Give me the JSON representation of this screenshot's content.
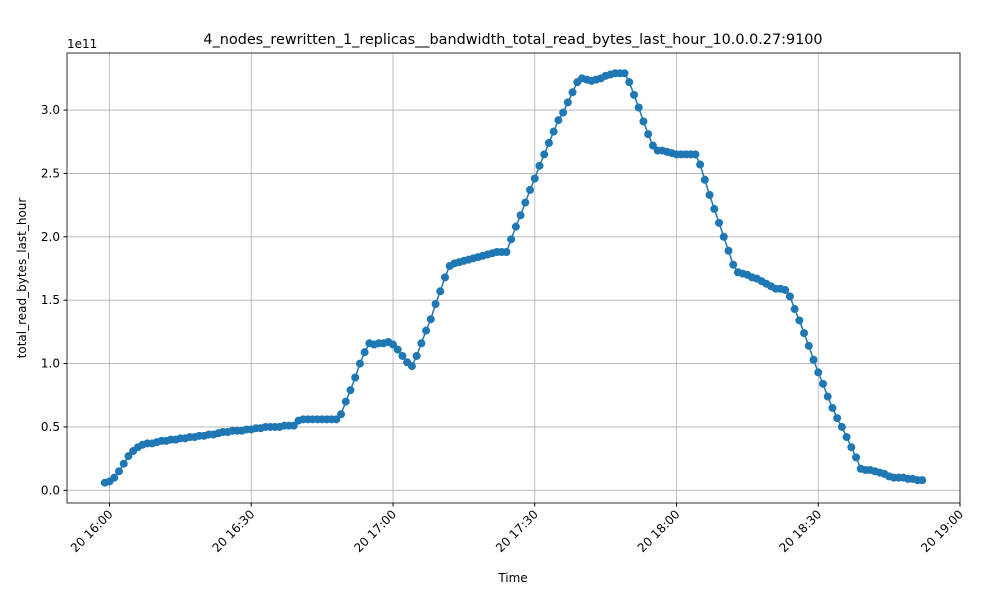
{
  "chart_data": {
    "type": "line",
    "title": "4_nodes_rewritten_1_replicas__bandwidth_total_read_bytes_last_hour_10.0.0.27:9100",
    "xlabel": "Time",
    "ylabel": "total_read_bytes_last_hour",
    "y_offset_label": "1e11",
    "x": [
      "20 15:59",
      "20 16:00",
      "20 16:01",
      "20 16:02",
      "20 16:03",
      "20 16:04",
      "20 16:05",
      "20 16:06",
      "20 16:07",
      "20 16:08",
      "20 16:09",
      "20 16:10",
      "20 16:11",
      "20 16:12",
      "20 16:13",
      "20 16:14",
      "20 16:15",
      "20 16:16",
      "20 16:17",
      "20 16:18",
      "20 16:19",
      "20 16:20",
      "20 16:21",
      "20 16:22",
      "20 16:23",
      "20 16:24",
      "20 16:25",
      "20 16:26",
      "20 16:27",
      "20 16:28",
      "20 16:29",
      "20 16:30",
      "20 16:31",
      "20 16:32",
      "20 16:33",
      "20 16:34",
      "20 16:35",
      "20 16:36",
      "20 16:37",
      "20 16:38",
      "20 16:39",
      "20 16:40",
      "20 16:41",
      "20 16:42",
      "20 16:43",
      "20 16:44",
      "20 16:45",
      "20 16:46",
      "20 16:47",
      "20 16:48",
      "20 16:49",
      "20 16:50",
      "20 16:51",
      "20 16:52",
      "20 16:53",
      "20 16:54",
      "20 16:55",
      "20 16:56",
      "20 16:57",
      "20 16:58",
      "20 16:59",
      "20 17:00",
      "20 17:01",
      "20 17:02",
      "20 17:03",
      "20 17:04",
      "20 17:05",
      "20 17:06",
      "20 17:07",
      "20 17:08",
      "20 17:09",
      "20 17:10",
      "20 17:11",
      "20 17:12",
      "20 17:13",
      "20 17:14",
      "20 17:15",
      "20 17:16",
      "20 17:17",
      "20 17:18",
      "20 17:19",
      "20 17:20",
      "20 17:21",
      "20 17:22",
      "20 17:23",
      "20 17:24",
      "20 17:25",
      "20 17:26",
      "20 17:27",
      "20 17:28",
      "20 17:29",
      "20 17:30",
      "20 17:31",
      "20 17:32",
      "20 17:33",
      "20 17:34",
      "20 17:35",
      "20 17:36",
      "20 17:37",
      "20 17:38",
      "20 17:39",
      "20 17:40",
      "20 17:41",
      "20 17:42",
      "20 17:43",
      "20 17:44",
      "20 17:45",
      "20 17:46",
      "20 17:47",
      "20 17:48",
      "20 17:49",
      "20 17:50",
      "20 17:51",
      "20 17:52",
      "20 17:53",
      "20 17:54",
      "20 17:55",
      "20 17:56",
      "20 17:57",
      "20 17:58",
      "20 17:59",
      "20 18:00",
      "20 18:01",
      "20 18:02",
      "20 18:03",
      "20 18:04",
      "20 18:05",
      "20 18:06",
      "20 18:07",
      "20 18:08",
      "20 18:09",
      "20 18:10",
      "20 18:11",
      "20 18:12",
      "20 18:13",
      "20 18:14",
      "20 18:15",
      "20 18:16",
      "20 18:17",
      "20 18:18",
      "20 18:19",
      "20 18:20",
      "20 18:21",
      "20 18:22",
      "20 18:23",
      "20 18:24",
      "20 18:25",
      "20 18:26",
      "20 18:27",
      "20 18:28",
      "20 18:29",
      "20 18:30",
      "20 18:31",
      "20 18:32",
      "20 18:33",
      "20 18:34",
      "20 18:35",
      "20 18:36",
      "20 18:37",
      "20 18:38",
      "20 18:39",
      "20 18:40",
      "20 18:41",
      "20 18:42",
      "20 18:43",
      "20 18:44",
      "20 18:45",
      "20 18:46",
      "20 18:47",
      "20 18:48",
      "20 18:49",
      "20 18:50",
      "20 18:51",
      "20 18:52"
    ],
    "series": [
      {
        "name": "total_read_bytes_last_hour",
        "color": "#1f77b4",
        "values": [
          0.06,
          0.07,
          0.1,
          0.15,
          0.21,
          0.27,
          0.31,
          0.34,
          0.36,
          0.37,
          0.37,
          0.38,
          0.39,
          0.39,
          0.4,
          0.4,
          0.41,
          0.41,
          0.42,
          0.42,
          0.43,
          0.43,
          0.44,
          0.44,
          0.45,
          0.46,
          0.46,
          0.47,
          0.47,
          0.47,
          0.48,
          0.48,
          0.49,
          0.49,
          0.5,
          0.5,
          0.5,
          0.5,
          0.51,
          0.51,
          0.51,
          0.55,
          0.56,
          0.56,
          0.56,
          0.56,
          0.56,
          0.56,
          0.56,
          0.56,
          0.6,
          0.7,
          0.79,
          0.89,
          1.0,
          1.09,
          1.16,
          1.15,
          1.16,
          1.16,
          1.17,
          1.15,
          1.11,
          1.06,
          1.01,
          0.98,
          1.06,
          1.16,
          1.26,
          1.35,
          1.47,
          1.57,
          1.68,
          1.77,
          1.79,
          1.8,
          1.81,
          1.82,
          1.83,
          1.84,
          1.85,
          1.86,
          1.87,
          1.88,
          1.88,
          1.88,
          1.98,
          2.08,
          2.17,
          2.27,
          2.37,
          2.46,
          2.56,
          2.65,
          2.74,
          2.83,
          2.92,
          2.98,
          3.06,
          3.14,
          3.22,
          3.25,
          3.24,
          3.23,
          3.24,
          3.25,
          3.27,
          3.28,
          3.29,
          3.29,
          3.29,
          3.22,
          3.12,
          3.02,
          2.91,
          2.81,
          2.72,
          2.68,
          2.68,
          2.67,
          2.66,
          2.65,
          2.65,
          2.65,
          2.65,
          2.65,
          2.57,
          2.45,
          2.33,
          2.22,
          2.11,
          2.0,
          1.89,
          1.78,
          1.72,
          1.71,
          1.7,
          1.68,
          1.67,
          1.65,
          1.63,
          1.61,
          1.59,
          1.59,
          1.58,
          1.53,
          1.43,
          1.34,
          1.24,
          1.14,
          1.03,
          0.93,
          0.84,
          0.74,
          0.65,
          0.57,
          0.5,
          0.42,
          0.34,
          0.26,
          0.17,
          0.16,
          0.16,
          0.15,
          0.14,
          0.13,
          0.11,
          0.1,
          0.1,
          0.1,
          0.09,
          0.09,
          0.08,
          0.08
        ]
      }
    ],
    "xlim": [
      "20 15:51",
      "20 19:00"
    ],
    "xticks": [
      "20 16:00",
      "20 16:30",
      "20 17:00",
      "20 17:30",
      "20 18:00",
      "20 18:30",
      "20 19:00"
    ],
    "ylim": [
      -0.1,
      3.45
    ],
    "yticks": [
      {
        "value": 0,
        "label": "0.0"
      },
      0.5,
      {
        "value": 1,
        "label": "1.0"
      },
      1.5,
      {
        "value": 2,
        "label": "2.0"
      },
      2.5,
      {
        "value": 3,
        "label": "3.0"
      }
    ],
    "grid": true
  }
}
